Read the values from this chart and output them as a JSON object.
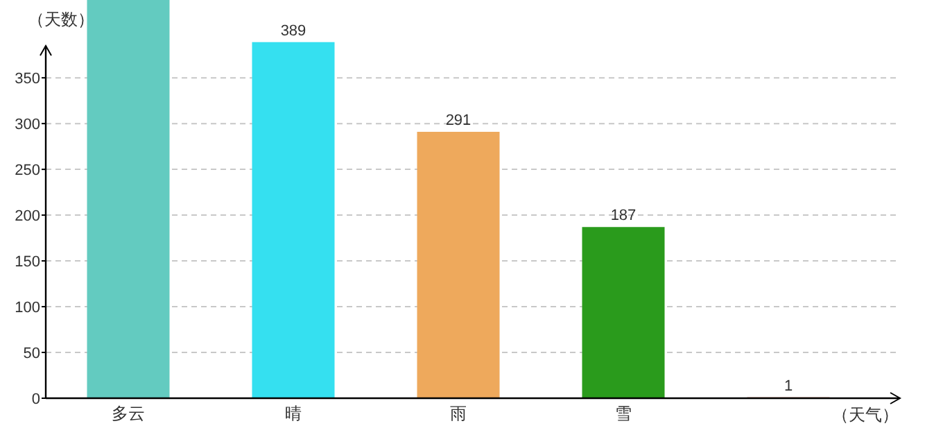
{
  "chart_data": {
    "type": "bar",
    "categories": [
      "多云",
      "晴",
      "雨",
      "雪",
      null
    ],
    "values": [
      435,
      389,
      291,
      187,
      1
    ],
    "colors": [
      "#63cbc0",
      "#35e0f0",
      "#eea95c",
      "#2a9b1c",
      "#b0563a"
    ],
    "value_labels": [
      null,
      "389",
      "291",
      "187",
      "1"
    ],
    "xlabel": "（天气）",
    "ylabel": "（天数）",
    "ylim": [
      0,
      435
    ],
    "yticks": [
      0,
      50,
      100,
      150,
      200,
      250,
      300,
      350
    ],
    "grid": "y"
  }
}
